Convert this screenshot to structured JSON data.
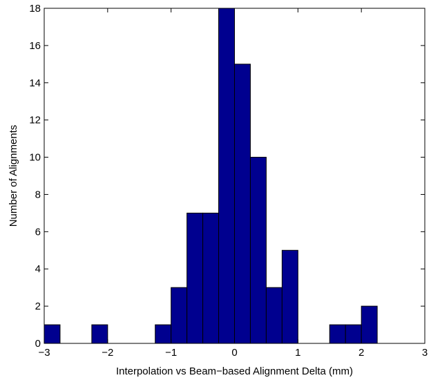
{
  "chart_data": {
    "type": "bar",
    "title": "",
    "xlabel": "Interpolation vs Beam−based Alignment Delta (mm)",
    "ylabel": "Number of Alignments",
    "xlim": [
      -3,
      3
    ],
    "ylim": [
      0,
      18
    ],
    "bin_width": 0.25,
    "bars": [
      {
        "x0": -3.0,
        "x1": -2.75,
        "value": 1
      },
      {
        "x0": -2.25,
        "x1": -2.0,
        "value": 1
      },
      {
        "x0": -1.25,
        "x1": -1.0,
        "value": 1
      },
      {
        "x0": -1.0,
        "x1": -0.75,
        "value": 3
      },
      {
        "x0": -0.75,
        "x1": -0.5,
        "value": 7
      },
      {
        "x0": -0.5,
        "x1": -0.25,
        "value": 7
      },
      {
        "x0": -0.25,
        "x1": 0.0,
        "value": 18
      },
      {
        "x0": 0.0,
        "x1": 0.25,
        "value": 15
      },
      {
        "x0": 0.25,
        "x1": 0.5,
        "value": 10
      },
      {
        "x0": 0.5,
        "x1": 0.75,
        "value": 3
      },
      {
        "x0": 0.75,
        "x1": 1.0,
        "value": 5
      },
      {
        "x0": 1.5,
        "x1": 1.75,
        "value": 1
      },
      {
        "x0": 1.75,
        "x1": 2.0,
        "value": 1
      },
      {
        "x0": 2.0,
        "x1": 2.25,
        "value": 2
      }
    ],
    "xticks": [
      "−3",
      "−2",
      "−1",
      "0",
      "1",
      "2",
      "3"
    ],
    "yticks": [
      "0",
      "2",
      "4",
      "6",
      "8",
      "10",
      "12",
      "14",
      "16",
      "18"
    ],
    "grid": false,
    "colors": {
      "bar_fill": "#00008f",
      "bar_edge": "#000000"
    }
  }
}
